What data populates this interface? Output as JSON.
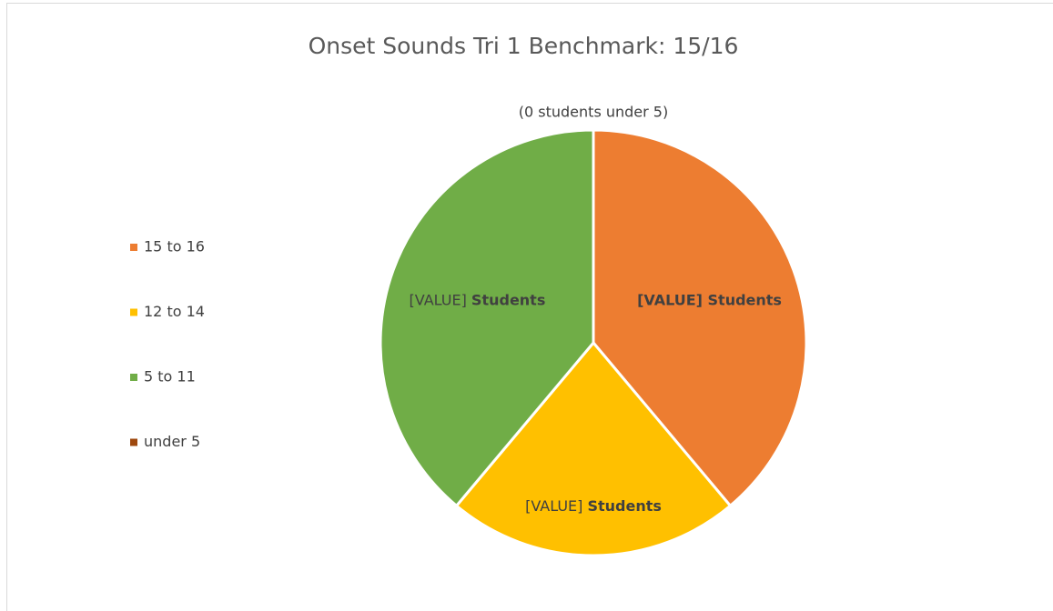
{
  "chart_data": {
    "type": "pie",
    "title": "Onset Sounds Tri 1 Benchmark: 15/16",
    "annotation": "(0 students under 5)",
    "categories": [
      "15 to 16",
      "12 to 14",
      "5 to 11",
      "under 5"
    ],
    "values": [
      7,
      4,
      7,
      0
    ],
    "value_labels": [
      "[VALUE] Students",
      "[VALUE] Students",
      "[VALUE] Students",
      null
    ],
    "colors": [
      "#ed7d31",
      "#ffc000",
      "#70ad47",
      "#9e480e"
    ],
    "legend": "left"
  }
}
